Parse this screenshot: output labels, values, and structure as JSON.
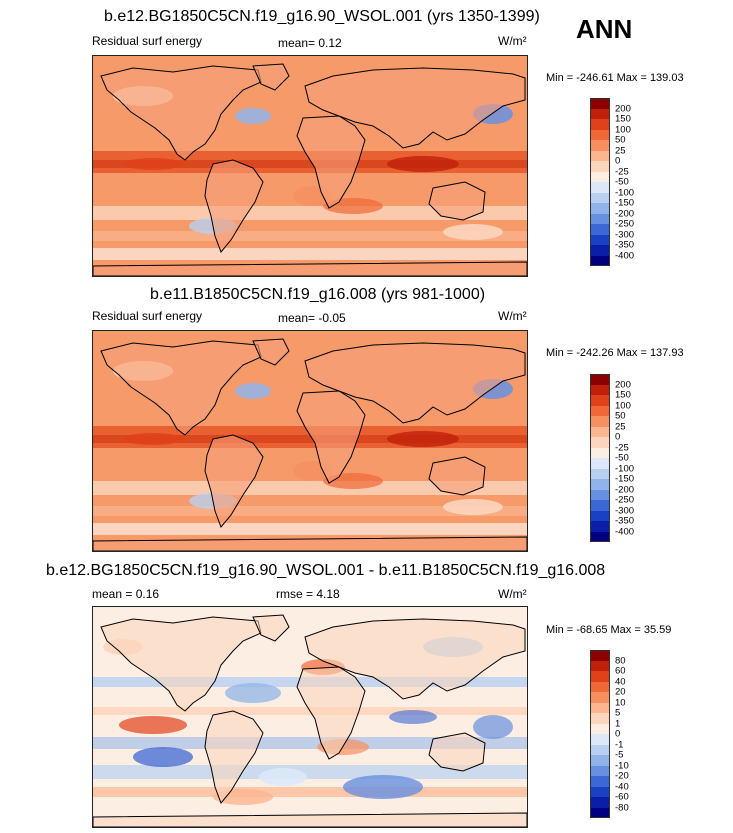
{
  "season": "ANN",
  "panels": [
    {
      "title": "b.e12.BG1850C5CN.f19_g16.90_WSOL.001 (yrs 1350-1399)",
      "left_label": "Residual surf energy",
      "center_label": "mean=  0.12",
      "units": "W/m²",
      "minmax": "Min = -246.61 Max = 139.03",
      "palette": "abs"
    },
    {
      "title": "b.e11.B1850C5CN.f19_g16.008 (yrs 981-1000)",
      "left_label": "Residual surf energy",
      "center_label": "mean=  -0.05",
      "units": "W/m²",
      "minmax": "Min = -242.26 Max = 137.93",
      "palette": "abs"
    },
    {
      "title": "b.e12.BG1850C5CN.f19_g16.90_WSOL.001 - b.e11.B1850C5CN.f19_g16.008",
      "left_label": "mean =  0.16",
      "center_label": "rmse =  4.18",
      "units": "W/m²",
      "minmax": "Min = -68.65 Max =  35.59",
      "palette": "diff"
    }
  ],
  "chart_data": [
    {
      "type": "heatmap",
      "title": "b.e12.BG1850C5CN.f19_g16.90_WSOL.001 (yrs 1350-1399)",
      "variable": "Residual surf energy",
      "units": "W/m2",
      "mean": 0.12,
      "min": -246.61,
      "max": 139.03,
      "colorbar_levels": [
        200,
        150,
        100,
        50,
        25,
        0,
        -25,
        -50,
        -100,
        -150,
        -200,
        -250,
        -300,
        -350,
        -400
      ],
      "colorbar_colors": [
        "#8b0000",
        "#c0200a",
        "#e0401a",
        "#f06838",
        "#f69060",
        "#fbb590",
        "#fcd5bc",
        "#fdeee4",
        "#dce8f8",
        "#b8d0f0",
        "#90b4ea",
        "#6890e0",
        "#3c68d6",
        "#1a40c4",
        "#0a1ea8",
        "#000080"
      ]
    },
    {
      "type": "heatmap",
      "title": "b.e11.B1850C5CN.f19_g16.008 (yrs 981-1000)",
      "variable": "Residual surf energy",
      "units": "W/m2",
      "mean": -0.05,
      "min": -242.26,
      "max": 137.93,
      "colorbar_levels": [
        200,
        150,
        100,
        50,
        25,
        0,
        -25,
        -50,
        -100,
        -150,
        -200,
        -250,
        -300,
        -350,
        -400
      ],
      "colorbar_colors": [
        "#8b0000",
        "#c0200a",
        "#e0401a",
        "#f06838",
        "#f69060",
        "#fbb590",
        "#fcd5bc",
        "#fdeee4",
        "#dce8f8",
        "#b8d0f0",
        "#90b4ea",
        "#6890e0",
        "#3c68d6",
        "#1a40c4",
        "#0a1ea8",
        "#000080"
      ]
    },
    {
      "type": "heatmap",
      "title": "b.e12.BG1850C5CN.f19_g16.90_WSOL.001 - b.e11.B1850C5CN.f19_g16.008",
      "units": "W/m2",
      "mean": 0.16,
      "rmse": 4.18,
      "min": -68.65,
      "max": 35.59,
      "colorbar_levels": [
        80,
        60,
        40,
        20,
        10,
        5,
        1,
        0,
        -1,
        -5,
        -10,
        -20,
        -40,
        -60,
        -80
      ],
      "colorbar_colors": [
        "#8b0000",
        "#c0200a",
        "#e0401a",
        "#f06838",
        "#f69060",
        "#fbb590",
        "#fcd5bc",
        "#fdeee4",
        "#dce8f8",
        "#b8d0f0",
        "#90b4ea",
        "#6890e0",
        "#3c68d6",
        "#1a40c4",
        "#0a1ea8",
        "#000080"
      ]
    }
  ]
}
